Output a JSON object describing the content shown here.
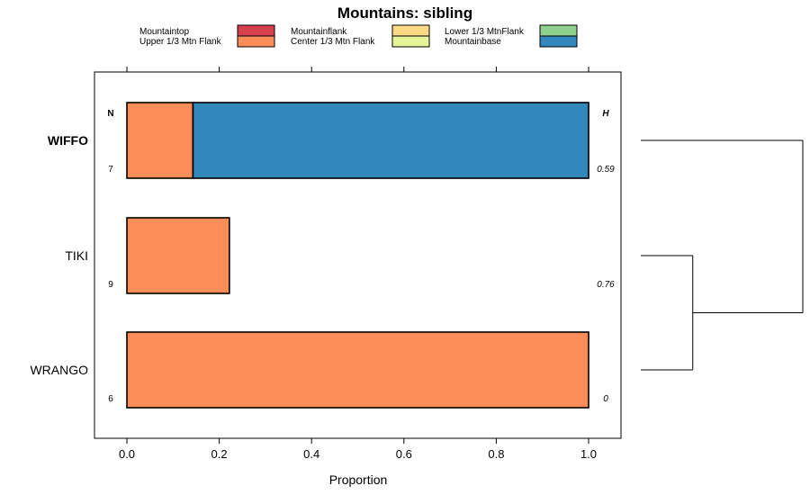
{
  "chart_data": {
    "type": "bar",
    "orientation": "horizontal",
    "stacked": true,
    "title": "Mountains: sibling",
    "xlabel": "Proportion",
    "ylabel": "",
    "xlim": [
      -0.07,
      1.07
    ],
    "xticks": [
      "0.0",
      "0.2",
      "0.4",
      "0.6",
      "0.8",
      "1.0"
    ],
    "n_header": "N",
    "h_header": "H",
    "legend": [
      {
        "name": "Mountaintop",
        "color": "#D7414E"
      },
      {
        "name": "Mountainflank",
        "color": "#FDDA85"
      },
      {
        "name": "Lower 1/3 MtnFlank",
        "color": "#90D18F"
      },
      {
        "name": "Upper 1/3 Mtn Flank",
        "color": "#FC8D59"
      },
      {
        "name": "Center 1/3 Mtn Flank",
        "color": "#E6F598"
      },
      {
        "name": "Mountainbase",
        "color": "#3288BD"
      }
    ],
    "categories": [
      {
        "label": "WIFFO",
        "bold": true,
        "n": "7",
        "h": "0.59",
        "segments": [
          {
            "series": "Upper 1/3 Mtn Flank",
            "value": 0.143
          },
          {
            "series": "Mountainbase",
            "value": 0.857
          }
        ]
      },
      {
        "label": "TIKI",
        "bold": false,
        "n": "9",
        "h": "0.76",
        "segments": [
          {
            "series": "Upper 1/3 Mtn Flank",
            "value": 0.222
          }
        ]
      },
      {
        "label": "WRANGO",
        "bold": false,
        "n": "6",
        "h": "0",
        "segments": [
          {
            "series": "Upper 1/3 Mtn Flank",
            "value": 1.0
          }
        ]
      }
    ],
    "dendrogram": {
      "leaves": [
        "WIFFO",
        "TIKI",
        "WRANGO"
      ],
      "merges": [
        {
          "children": [
            "TIKI",
            "WRANGO"
          ],
          "height": 0.35
        },
        {
          "children": [
            "WIFFO",
            "TIKI+WRANGO"
          ],
          "height": 1.0
        }
      ]
    }
  }
}
